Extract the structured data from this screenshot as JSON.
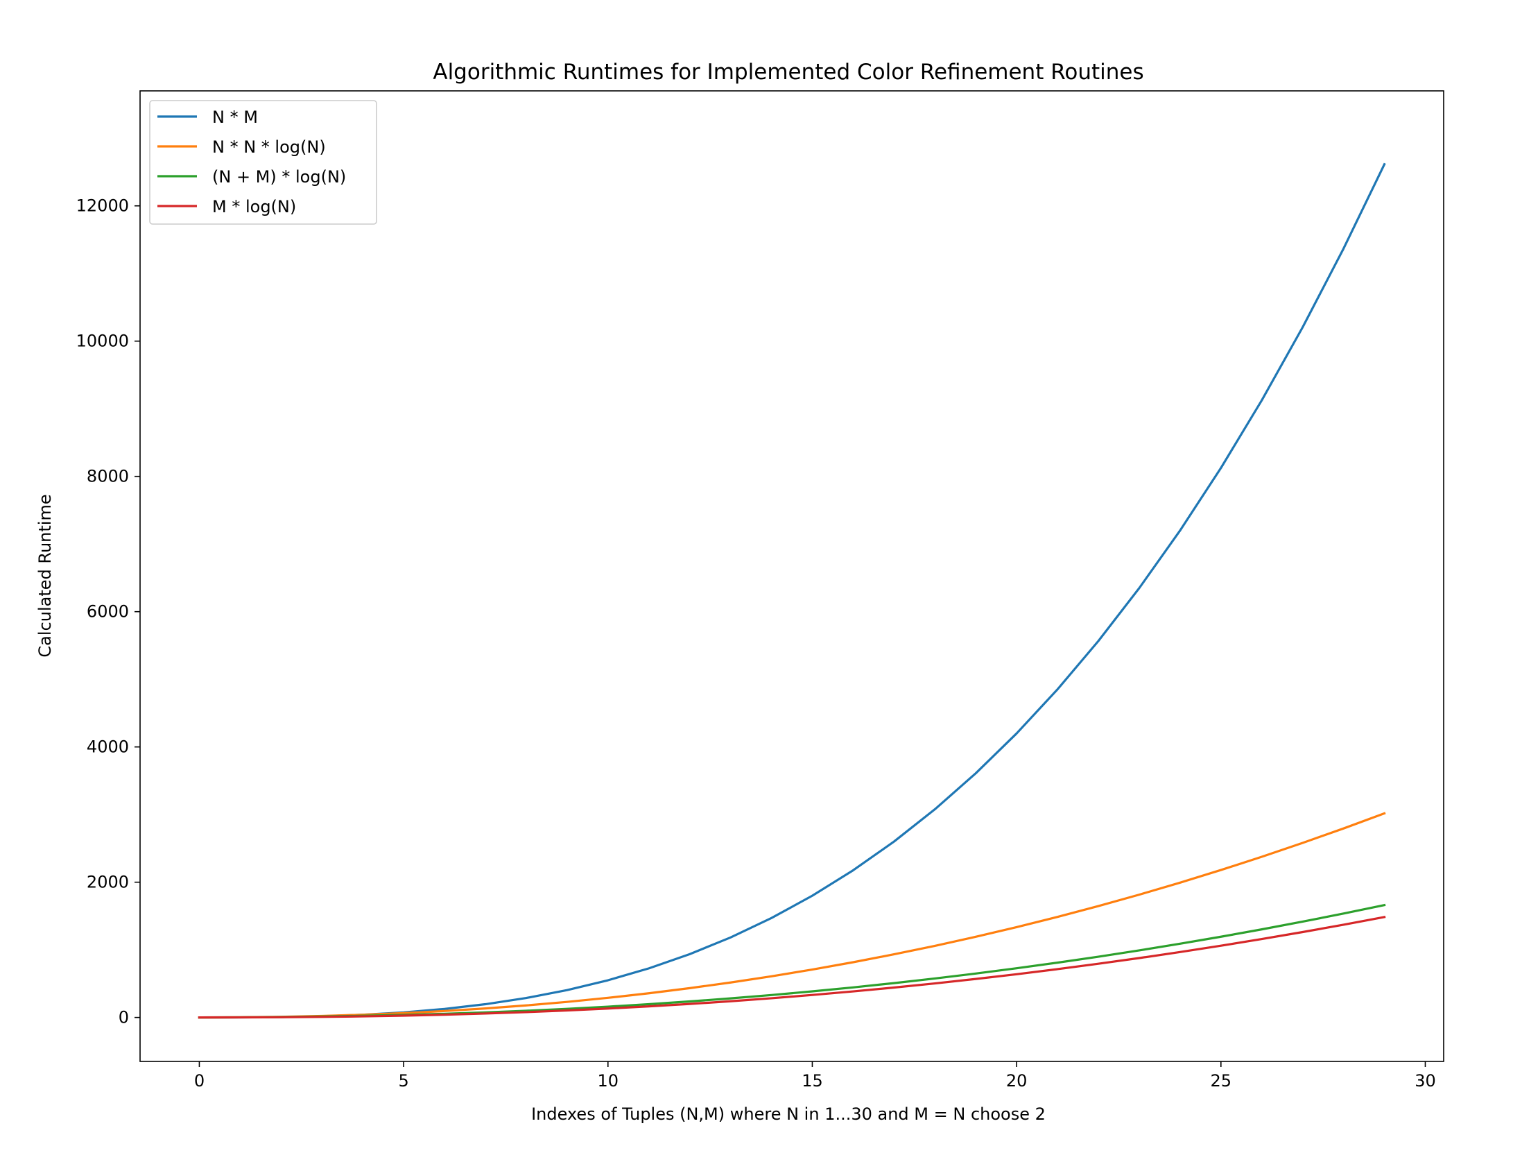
{
  "chart_data": {
    "type": "line",
    "title": "Algorithmic Runtimes for Implemented Color Refinement Routines",
    "xlabel": "Indexes of Tuples (N,M) where N in 1...30 and M = N choose 2",
    "ylabel": "Calculated Runtime",
    "xlim": [
      -1.45,
      30.45
    ],
    "ylim": [
      -650,
      13700
    ],
    "xticks": [
      0,
      5,
      10,
      15,
      20,
      25,
      30
    ],
    "yticks": [
      0,
      2000,
      4000,
      6000,
      8000,
      10000,
      12000
    ],
    "grid": false,
    "legend_position": "top-left",
    "x": [
      0,
      1,
      2,
      3,
      4,
      5,
      6,
      7,
      8,
      9,
      10,
      11,
      12,
      13,
      14,
      15,
      16,
      17,
      18,
      19,
      20,
      21,
      22,
      23,
      24,
      25,
      26,
      27,
      28,
      29
    ],
    "series": [
      {
        "name": "N * M",
        "color": "#1f77b4",
        "values": [
          0,
          1,
          6,
          18,
          40,
          75,
          126,
          196,
          288,
          405,
          550,
          726,
          936,
          1183,
          1470,
          1800,
          2176,
          2601,
          3078,
          3610,
          4200,
          4851,
          5566,
          6348,
          7200,
          8125,
          9126,
          10206,
          11368,
          12615
        ]
      },
      {
        "name": "N * N * log(N)",
        "color": "#ff7f0e",
        "values": [
          0,
          2.8,
          9.9,
          22.2,
          40.2,
          64.5,
          95.4,
          133.1,
          178,
          230.3,
          290.2,
          357.8,
          433.3,
          516.9,
          608.6,
          708.6,
          816.8,
          933.6,
          1058.8,
          1192.7,
          1335.3,
          1486.5,
          1646.6,
          1815.5,
          1993.3,
          2180.1,
          2375.9,
          2580.7,
          2794.6,
          3017.7
        ]
      },
      {
        "name": "(N + M) * log(N)",
        "color": "#2ca02c",
        "values": [
          0,
          2.1,
          6.6,
          13.9,
          24.1,
          37.6,
          54.5,
          75,
          99.3,
          127.5,
          159.8,
          196.2,
          236.9,
          282,
          331.6,
          385.7,
          444.4,
          507.9,
          576.2,
          649.3,
          727.4,
          810.4,
          898.5,
          991.8,
          1090.2,
          1193.8,
          1302.8,
          1417.1,
          1536.8,
          1661.9
        ]
      },
      {
        "name": "M * log(N)",
        "color": "#d62728",
        "values": [
          0,
          0.7,
          3.3,
          8.3,
          16.1,
          26.9,
          40.9,
          58.2,
          79.1,
          103.6,
          131.8,
          163.9,
          199.9,
          240,
          284.2,
          332.6,
          385.2,
          442.2,
          503.5,
          569.3,
          639.6,
          714.5,
          794,
          878.2,
          967.2,
          1061,
          1159.6,
          1263.1,
          1371.5,
          1484.9
        ]
      }
    ]
  }
}
